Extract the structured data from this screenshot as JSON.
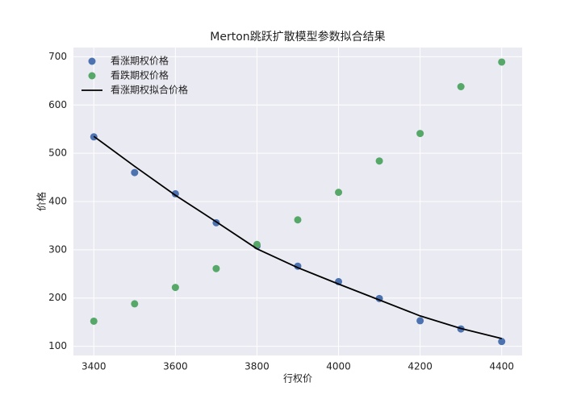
{
  "chart_data": {
    "type": "scatter",
    "title": "Merton跳跃扩散模型参数拟合结果",
    "x_label": "行权价",
    "y_label": "价格",
    "x": [
      3400,
      3500,
      3600,
      3700,
      3800,
      3900,
      4000,
      4100,
      4200,
      4300,
      4400
    ],
    "series": [
      {
        "name": "看涨期权价格",
        "color": "#4c72b0",
        "kind": "scatter",
        "values": [
          534,
          460,
          416,
          356,
          308,
          266,
          234,
          199,
          153,
          136,
          110
        ]
      },
      {
        "name": "看跌期权价格",
        "color": "#55a868",
        "kind": "scatter",
        "values": [
          152,
          188,
          222,
          261,
          311,
          362,
          419,
          484,
          541,
          638,
          689
        ]
      },
      {
        "name": "看涨期权拟合价格",
        "color": "#000000",
        "kind": "line",
        "values": [
          535,
          473,
          413,
          358,
          302,
          263,
          229,
          196,
          163,
          137,
          116
        ]
      }
    ],
    "xlim": [
      3350,
      4450
    ],
    "xticks": [
      3400,
      3600,
      3800,
      4000,
      4200,
      4400
    ],
    "ylim": [
      81,
      719
    ],
    "yticks": [
      100,
      200,
      300,
      400,
      500,
      600,
      700
    ],
    "grid": true,
    "legend": "upper left"
  }
}
